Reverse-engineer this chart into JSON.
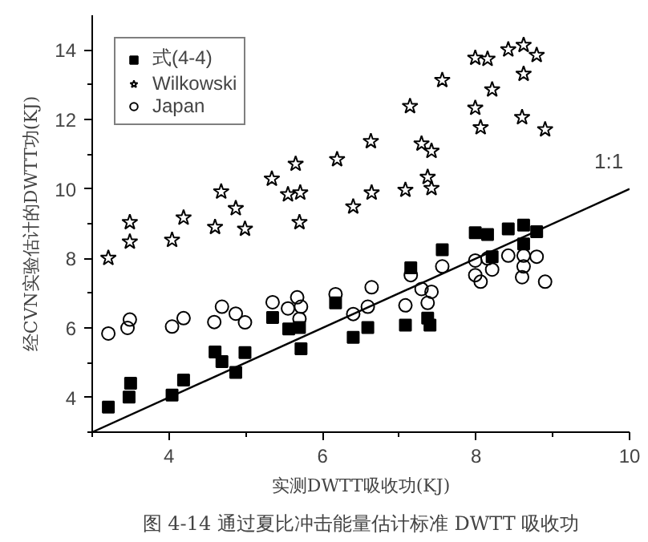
{
  "chart_data": {
    "type": "scatter",
    "xlabel": "实测DWTT吸收功(KJ)",
    "ylabel": "经CVN实验估计的DWTT功(KJ)",
    "annotations": [
      "图 4-14 通过夏比冲击能量估计标准 DWTT 吸收功"
    ],
    "xlim": [
      3,
      10
    ],
    "ylim": [
      3,
      15
    ],
    "xticks": [
      4,
      6,
      8,
      10
    ],
    "yticks": [
      4,
      6,
      8,
      10,
      12,
      14
    ],
    "grid": false,
    "legend": "top left",
    "series": [
      {
        "name": "式(4-4)",
        "color": "#000000",
        "marker": "square",
        "x": [
          3.21,
          3.48,
          3.5,
          4.04,
          4.19,
          4.6,
          4.69,
          4.87,
          4.99,
          5.35,
          5.56,
          5.7,
          5.72,
          6.17,
          6.4,
          6.59,
          7.08,
          7.15,
          7.4,
          7.37,
          7.56,
          7.99,
          8.15,
          8.21,
          8.42,
          8.62,
          8.79,
          8.62
        ],
        "values": [
          3.72,
          4.01,
          4.41,
          4.07,
          4.5,
          5.31,
          5.03,
          4.72,
          5.29,
          6.3,
          5.97,
          6.01,
          5.4,
          6.72,
          5.73,
          6.01,
          6.08,
          7.73,
          6.08,
          6.28,
          8.25,
          8.74,
          8.69,
          8.05,
          8.85,
          8.96,
          8.77,
          8.42
        ]
      },
      {
        "name": "Wilkowski",
        "color": "#000000",
        "marker": "star",
        "x": [
          3.21,
          3.49,
          3.49,
          4.04,
          4.19,
          4.6,
          4.68,
          4.87,
          4.99,
          5.34,
          5.55,
          5.71,
          5.65,
          5.7,
          6.19,
          6.4,
          6.63,
          6.64,
          7.08,
          7.14,
          7.29,
          7.42,
          7.37,
          7.42,
          7.56,
          7.99,
          8.15,
          7.99,
          8.06,
          8.21,
          8.42,
          8.62,
          8.79,
          8.62,
          8.6,
          8.9
        ],
        "values": [
          8.01,
          8.48,
          9.04,
          8.53,
          9.17,
          8.9,
          9.92,
          9.44,
          8.85,
          10.29,
          9.84,
          9.89,
          10.72,
          9.04,
          10.85,
          9.49,
          11.37,
          9.89,
          9.97,
          12.38,
          11.3,
          11.09,
          10.34,
          10.02,
          13.13,
          13.77,
          13.74,
          12.33,
          11.77,
          12.86,
          14.01,
          14.14,
          13.85,
          13.31,
          12.06,
          11.71
        ]
      },
      {
        "name": "Japan",
        "color": "#000000",
        "marker": "circle",
        "x": [
          3.21,
          3.46,
          3.49,
          4.04,
          4.19,
          4.59,
          4.69,
          4.87,
          4.99,
          5.35,
          5.55,
          5.67,
          5.72,
          5.7,
          6.17,
          6.4,
          6.59,
          6.64,
          7.08,
          7.15,
          7.29,
          7.42,
          7.37,
          7.56,
          7.99,
          8.15,
          7.99,
          8.06,
          8.21,
          8.42,
          8.62,
          8.79,
          8.62,
          8.6,
          8.9
        ],
        "values": [
          5.84,
          6.0,
          6.24,
          6.04,
          6.28,
          6.17,
          6.61,
          6.41,
          6.16,
          6.74,
          6.56,
          6.88,
          6.61,
          6.26,
          6.97,
          6.4,
          6.61,
          7.17,
          6.65,
          7.52,
          7.12,
          7.04,
          6.72,
          7.77,
          7.94,
          8.0,
          7.52,
          7.33,
          7.68,
          8.08,
          8.08,
          8.05,
          7.77,
          7.46,
          7.33
        ]
      },
      {
        "name": "1:1",
        "type": "line",
        "color": "#000000",
        "line_style": "solid",
        "x": [
          3,
          10
        ],
        "values": [
          3,
          10
        ]
      }
    ]
  }
}
